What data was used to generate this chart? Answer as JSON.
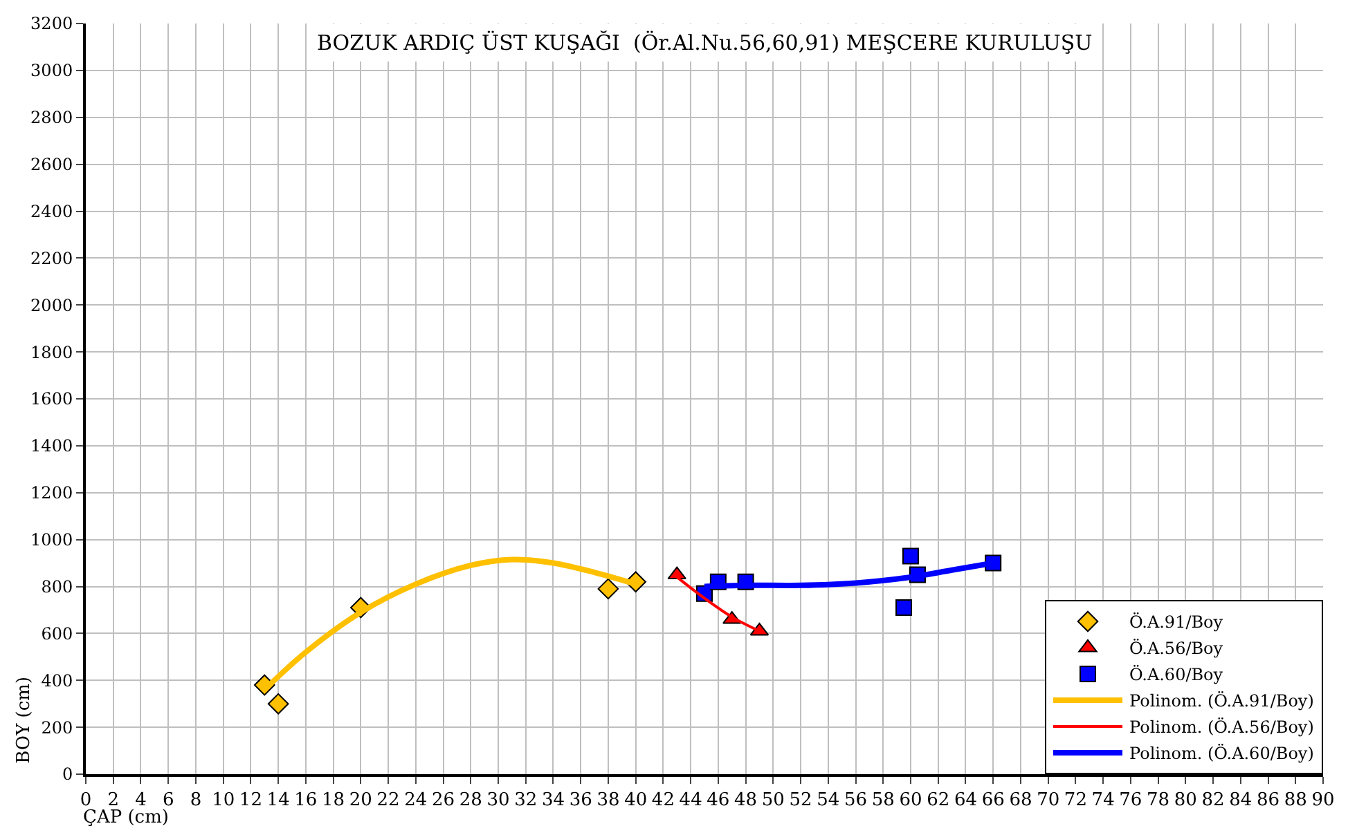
{
  "chart_data": {
    "type": "scatter",
    "title": "BOZUK ARDIÇ ÜST KUŞAĞI  (Ör.Al.Nu.56,60,91) MEŞCERE KURULUŞU",
    "xlabel": "ÇAP (cm)",
    "ylabel": "BOY (cm)",
    "xlim": [
      0,
      90
    ],
    "xticks": [
      0,
      2,
      4,
      6,
      8,
      10,
      12,
      14,
      16,
      18,
      20,
      22,
      24,
      26,
      28,
      30,
      32,
      34,
      36,
      38,
      40,
      42,
      44,
      46,
      48,
      50,
      52,
      54,
      56,
      58,
      60,
      62,
      64,
      66,
      68,
      70,
      72,
      74,
      76,
      78,
      80,
      82,
      84,
      86,
      88,
      90
    ],
    "ylim": [
      0,
      3200
    ],
    "yticks": [
      0,
      200,
      400,
      600,
      800,
      1000,
      1200,
      1400,
      1600,
      1800,
      2000,
      2200,
      2400,
      2600,
      2800,
      3000,
      3200
    ],
    "grid": true,
    "legend": "bottom right",
    "series": [
      {
        "name": "Ö.A.91/Boy",
        "marker": "diamond",
        "color": "#ffc000",
        "x": [
          13,
          14,
          20,
          38,
          40
        ],
        "values": [
          380,
          300,
          710,
          790,
          820
        ]
      },
      {
        "name": "Ö.A.56/Boy",
        "marker": "triangle",
        "color": "#ff0000",
        "x": [
          43,
          47,
          49
        ],
        "values": [
          850,
          660,
          610
        ]
      },
      {
        "name": "Ö.A.60/Boy",
        "marker": "square",
        "color": "#0000ff",
        "x": [
          45,
          46,
          48,
          59.5,
          60,
          60.5,
          66
        ],
        "values": [
          770,
          820,
          820,
          710,
          930,
          850,
          900
        ]
      },
      {
        "name": "Polinom. (Ö.A.91/Boy)",
        "type": "line",
        "marker": "none",
        "color": "#ffc000",
        "x": [
          13,
          16,
          20,
          24,
          28,
          31,
          34,
          37,
          40
        ],
        "values": [
          360,
          520,
          690,
          810,
          890,
          915,
          900,
          860,
          810
        ]
      },
      {
        "name": "Polinom. (Ö.A.56/Boy)",
        "type": "line",
        "marker": "none",
        "color": "#ff0000",
        "x": [
          43,
          45,
          47,
          49
        ],
        "values": [
          840,
          750,
          670,
          610
        ]
      },
      {
        "name": "Polinom. (Ö.A.60/Boy)",
        "type": "line",
        "marker": "none",
        "color": "#0000ff",
        "x": [
          45,
          48,
          52,
          56,
          60,
          63,
          66
        ],
        "values": [
          800,
          805,
          805,
          815,
          840,
          870,
          900
        ]
      }
    ]
  }
}
